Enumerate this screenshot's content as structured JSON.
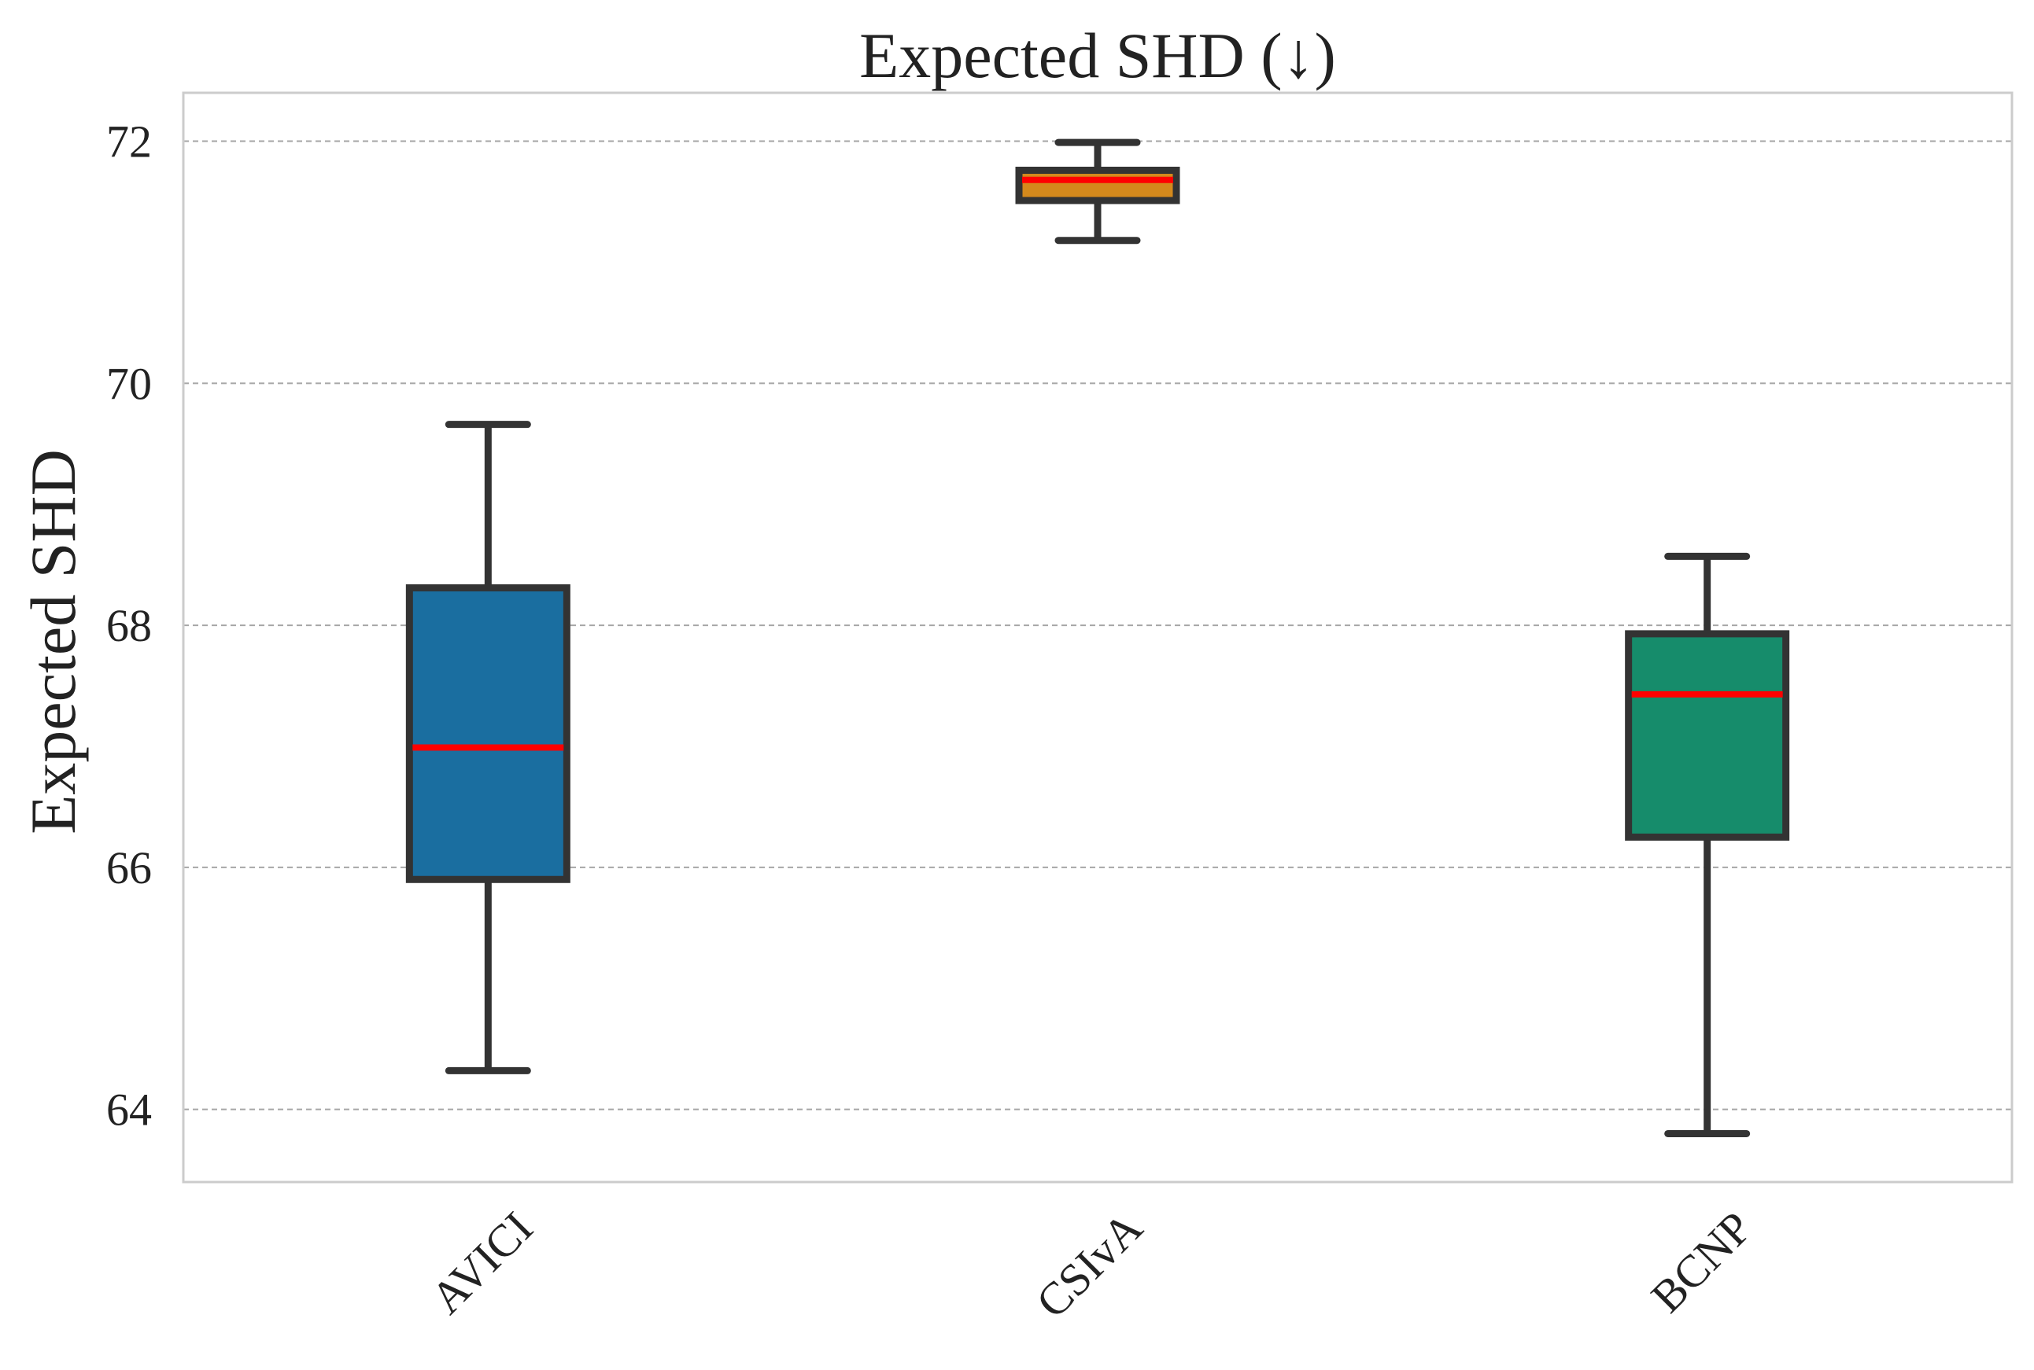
{
  "chart_data": {
    "type": "boxplot",
    "title": "Expected SHD (↓)",
    "ylabel": "Expected SHD",
    "xlabel": "",
    "ylim": [
      63.4,
      72.4
    ],
    "yticks": [
      64,
      66,
      68,
      70,
      72
    ],
    "grid": "horizontal-dashed",
    "median_color": "#ff0000",
    "edge_color": "#333333",
    "categories": [
      "AVICI",
      "CSIvA",
      "BCNP"
    ],
    "boxes": [
      {
        "label": "AVICI",
        "color": "#1a6ea0",
        "whisker_low": 64.32,
        "q1": 65.9,
        "median": 66.99,
        "q3": 68.31,
        "whisker_high": 69.66
      },
      {
        "label": "CSIvA",
        "color": "#d4891c",
        "whisker_low": 71.18,
        "q1": 71.51,
        "median": 71.68,
        "q3": 71.76,
        "whisker_high": 71.99
      },
      {
        "label": "BCNP",
        "color": "#168c6b",
        "whisker_low": 63.8,
        "q1": 66.25,
        "median": 67.43,
        "q3": 67.93,
        "whisker_high": 68.57
      }
    ]
  }
}
